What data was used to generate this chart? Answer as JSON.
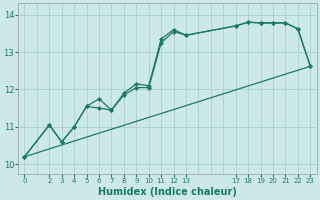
{
  "xlabel": "Humidex (Indice chaleur)",
  "xlim": [
    -0.5,
    23.5
  ],
  "ylim": [
    9.75,
    14.3
  ],
  "yticks": [
    10,
    11,
    12,
    13,
    14
  ],
  "xtick_positions": [
    0,
    2,
    3,
    4,
    5,
    6,
    7,
    8,
    9,
    10,
    11,
    12,
    13,
    17,
    18,
    19,
    20,
    21,
    22,
    23
  ],
  "xtick_labels": [
    "0",
    "2",
    "3",
    "4",
    "5",
    "6",
    "7",
    "8",
    "9",
    "10",
    "11",
    "12",
    "13",
    "17",
    "18",
    "19",
    "20",
    "21",
    "22",
    "23"
  ],
  "grid_x": [
    0,
    1,
    2,
    3,
    4,
    5,
    6,
    7,
    8,
    9,
    10,
    11,
    12,
    13,
    14,
    15,
    16,
    17,
    18,
    19,
    20,
    21,
    22,
    23
  ],
  "bg_color": "#cde8e8",
  "grid_color": "#aacfcf",
  "line_color": "#1a7a6a",
  "line1_x": [
    0,
    2,
    3,
    4,
    5,
    6,
    7,
    8,
    9,
    10,
    11,
    12,
    13,
    17,
    18,
    19,
    20,
    21,
    22,
    23
  ],
  "line1_y": [
    10.2,
    11.05,
    10.6,
    11.0,
    11.55,
    11.75,
    11.45,
    11.9,
    12.15,
    12.1,
    13.35,
    13.6,
    13.45,
    13.7,
    13.8,
    13.78,
    13.78,
    13.78,
    13.62,
    12.62
  ],
  "line2_x": [
    0,
    2,
    3,
    4,
    5,
    6,
    7,
    8,
    9,
    10,
    11,
    12,
    13,
    17,
    18,
    19,
    20,
    21,
    22,
    23
  ],
  "line2_y": [
    10.2,
    11.05,
    10.6,
    11.0,
    11.55,
    11.5,
    11.45,
    11.85,
    12.05,
    12.05,
    13.25,
    13.55,
    13.45,
    13.7,
    13.8,
    13.78,
    13.78,
    13.78,
    13.62,
    12.62
  ],
  "line3_x": [
    0,
    23
  ],
  "line3_y": [
    10.2,
    12.62
  ]
}
